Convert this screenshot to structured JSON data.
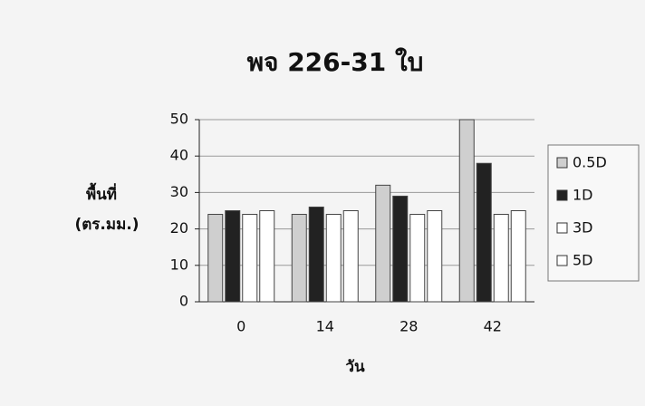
{
  "chart_data": {
    "type": "bar",
    "title": "พจ 226-31 ใบ",
    "ylabel": [
      "พื้นที่",
      "(ตร.มม.)"
    ],
    "xlabel": "วัน",
    "categories": [
      "0",
      "14",
      "28",
      "42"
    ],
    "series": [
      {
        "name": "0.5D",
        "color": "#cfcfcf",
        "values": [
          24,
          24,
          32,
          50
        ]
      },
      {
        "name": "1D",
        "color": "#222222",
        "values": [
          25,
          26,
          29,
          38
        ]
      },
      {
        "name": "3D",
        "color": "#ffffff",
        "values": [
          24,
          24,
          24,
          24
        ]
      },
      {
        "name": "5D",
        "color": "#ffffff",
        "values": [
          25,
          25,
          25,
          25
        ]
      }
    ],
    "ylim": [
      0,
      50
    ],
    "yticks": [
      0,
      10,
      20,
      30,
      40,
      50
    ],
    "grid": true,
    "legend": "right"
  }
}
